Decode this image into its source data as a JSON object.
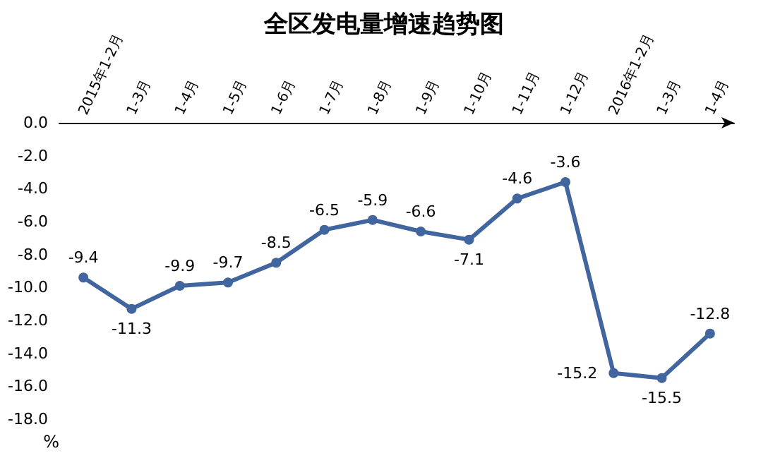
{
  "chart_data": {
    "type": "line",
    "title": "全区发电量增速趋势图",
    "ylabel": "%",
    "categories": [
      "2015年1-2月",
      "1-3月",
      "1-4月",
      "1-5月",
      "1-6月",
      "1-7月",
      "1-8月",
      "1-9月",
      "1-10月",
      "1-11月",
      "1-12月",
      "2016年1-2月",
      "1-3月",
      "1-4月"
    ],
    "series": [
      {
        "color": "#41659f",
        "values": [
          -9.4,
          -11.3,
          -9.9,
          -9.7,
          -8.5,
          -6.5,
          -5.9,
          -6.6,
          -7.1,
          -4.6,
          -3.6,
          -15.2,
          -15.5,
          -12.8
        ]
      }
    ],
    "ylim": [
      -18,
      0
    ],
    "yticks": [
      {
        "value": 0,
        "label": "0.0"
      },
      {
        "value": -2,
        "label": "-2.0"
      },
      {
        "value": -4,
        "label": "-4.0"
      },
      {
        "value": -6,
        "label": "-6.0"
      },
      {
        "value": -8,
        "label": "-8.0"
      },
      {
        "value": -10,
        "label": "-10.0"
      },
      {
        "value": -12,
        "label": "-12.0"
      },
      {
        "value": -14,
        "label": "-14.0"
      },
      {
        "value": -16,
        "label": "-16.0"
      },
      {
        "value": -18,
        "label": "-18.0"
      }
    ],
    "data_labels": true,
    "marker": "circle",
    "grid": false
  }
}
